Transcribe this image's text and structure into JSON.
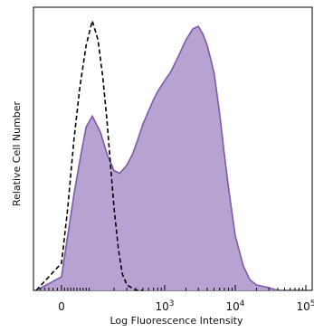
{
  "chart_data": {
    "type": "area",
    "title": "",
    "xlabel": "Log Fluorescence Intensity",
    "ylabel": "Relative Cell Number",
    "x_scale": "biexponential",
    "x_ticks": [
      {
        "value": 0,
        "label": "0"
      },
      {
        "value": 1000,
        "label": "10",
        "sup": "3"
      },
      {
        "value": 10000,
        "label": "10",
        "sup": "4"
      },
      {
        "value": 100000,
        "label": "10",
        "sup": "5"
      }
    ],
    "xlim": [
      -60,
      200000
    ],
    "ylim": [
      0,
      100
    ],
    "grid": false,
    "legend": "none",
    "series": [
      {
        "style": "dashed-line",
        "color": "#000000",
        "x": [
          -60,
          0,
          20,
          40,
          60,
          80,
          100,
          120,
          140,
          160,
          180,
          200,
          230,
          260,
          300,
          350,
          400,
          450,
          500
        ],
        "y": [
          0,
          10,
          30,
          55,
          75,
          90,
          99,
          92,
          78,
          62,
          45,
          30,
          15,
          6,
          2,
          1,
          0,
          0,
          0
        ]
      },
      {
        "style": "filled",
        "color": "#7b5aa8",
        "fill": "#b7a3d1",
        "x": [
          -60,
          0,
          20,
          40,
          60,
          80,
          100,
          130,
          160,
          200,
          240,
          300,
          360,
          420,
          500,
          600,
          700,
          800,
          1000,
          1200,
          1500,
          2000,
          2500,
          3000,
          3500,
          4000,
          5000,
          6000,
          7000,
          8000,
          10000,
          13000,
          16000,
          20000,
          30000,
          40000
        ],
        "y": [
          0,
          5,
          20,
          35,
          48,
          60,
          64,
          58,
          50,
          44,
          43,
          46,
          50,
          55,
          61,
          66,
          70,
          73,
          77,
          80,
          85,
          92,
          96,
          97,
          94,
          90,
          80,
          65,
          50,
          38,
          20,
          9,
          4,
          2,
          1,
          0
        ]
      }
    ]
  }
}
